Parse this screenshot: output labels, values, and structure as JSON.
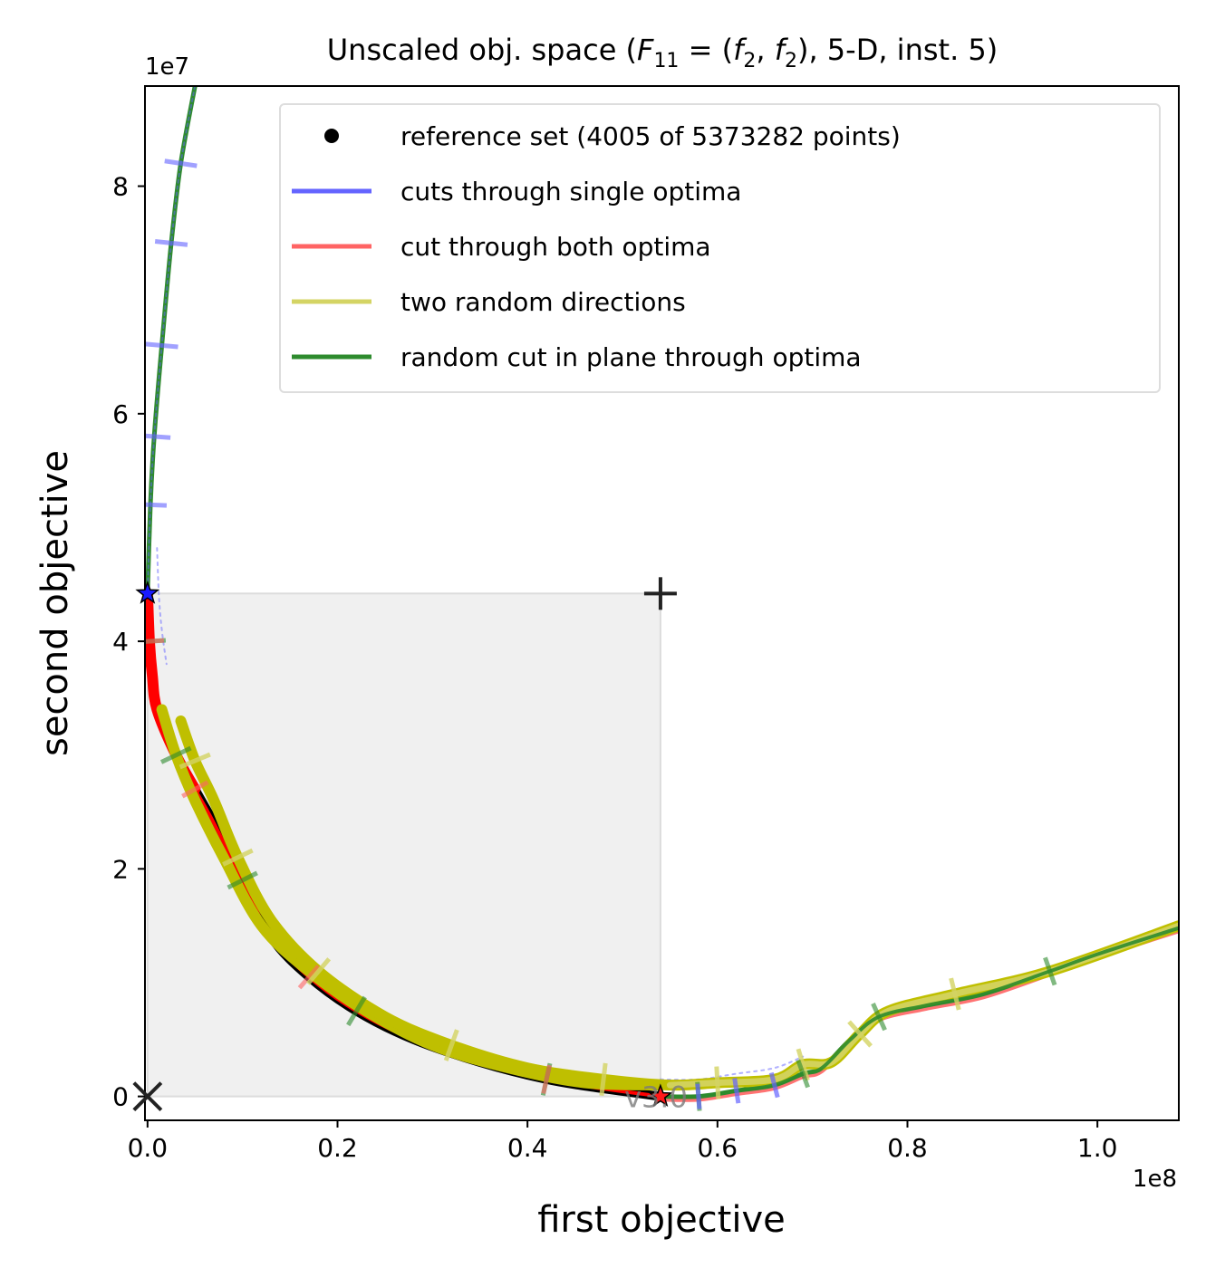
{
  "chart_data": {
    "type": "line",
    "title_prefix": "Unscaled obj. space (",
    "title_formula": {
      "F": "F",
      "F_sub": "11",
      "eq": " = (",
      "f1": "f",
      "f1_sub": "2",
      "comma": ", ",
      "f2": "f",
      "f2_sub": "2",
      "close": ")"
    },
    "title_suffix": ", 5-D, inst. 5)",
    "xlabel": "first objective",
    "ylabel": "second objective",
    "x_multiplier": "1e8",
    "y_multiplier": "1e7",
    "xlim": [
      -0.0027,
      1.0857
    ],
    "ylim": [
      -0.21,
      8.88
    ],
    "x_unit": 100000000,
    "y_unit": 10000000,
    "xticks": [
      0.0,
      0.2,
      0.4,
      0.6,
      0.8,
      1.0
    ],
    "xtick_labels": [
      "0.0",
      "0.2",
      "0.4",
      "0.6",
      "0.8",
      "1.0"
    ],
    "yticks": [
      0,
      2,
      4,
      6,
      8
    ],
    "ytick_labels": [
      "0",
      "2",
      "4",
      "6",
      "8"
    ],
    "version_label": "v3.0",
    "grid": false,
    "legend_position": "top-right",
    "legend": [
      {
        "label": "reference set (4005 of 5373282 points)",
        "marker": "dot",
        "color": "#000000"
      },
      {
        "label": "cuts through single optima",
        "marker": "line",
        "color": "#6464ff"
      },
      {
        "label": "cut through both optima",
        "marker": "line",
        "color": "#ff6464"
      },
      {
        "label": "two random directions",
        "marker": "line",
        "color": "#d4d464"
      },
      {
        "label": "random cut in plane through optima",
        "marker": "line",
        "color": "#2e8b2e"
      }
    ],
    "colors": {
      "reference": "#000000",
      "single_optima": "#6464ff",
      "both_optima": "#ff6464",
      "both_optima_dark": "#ff0000",
      "random_dirs": "#d4d464",
      "random_dirs_dark": "#bfbf00",
      "plane_cut": "#2e8b2e",
      "region": "#f0f0f0"
    },
    "markers": {
      "ideal_point": [
        0.0,
        0.0
      ],
      "nadir_point": [
        0.54,
        4.42
      ],
      "optimum_1": [
        0.0,
        4.42
      ],
      "optimum_2": [
        0.54,
        0.0
      ]
    },
    "series": [
      {
        "key": "reference",
        "points": [
          [
            0.0,
            4.42
          ],
          [
            0.002,
            4.0
          ],
          [
            0.005,
            3.7
          ],
          [
            0.01,
            3.4
          ],
          [
            0.03,
            3.0
          ],
          [
            0.05,
            2.7
          ],
          [
            0.07,
            2.4
          ],
          [
            0.1,
            1.9
          ],
          [
            0.13,
            1.4
          ],
          [
            0.17,
            1.05
          ],
          [
            0.22,
            0.75
          ],
          [
            0.28,
            0.5
          ],
          [
            0.35,
            0.3
          ],
          [
            0.42,
            0.15
          ],
          [
            0.47,
            0.08
          ],
          [
            0.54,
            0.0
          ]
        ]
      },
      {
        "key": "plane_cut_left",
        "points": [
          [
            0.0,
            4.42
          ],
          [
            0.003,
            5.2
          ],
          [
            0.007,
            5.8
          ],
          [
            0.015,
            6.6
          ],
          [
            0.025,
            7.5
          ],
          [
            0.035,
            8.2
          ],
          [
            0.05,
            8.88
          ]
        ]
      },
      {
        "key": "plane_cut_right",
        "points": [
          [
            0.54,
            0.0
          ],
          [
            0.58,
            0.0
          ],
          [
            0.62,
            0.05
          ],
          [
            0.66,
            0.1
          ],
          [
            0.69,
            0.2
          ],
          [
            0.71,
            0.25
          ],
          [
            0.74,
            0.5
          ],
          [
            0.77,
            0.7
          ],
          [
            0.82,
            0.8
          ],
          [
            0.88,
            0.9
          ],
          [
            0.95,
            1.1
          ],
          [
            1.0,
            1.25
          ],
          [
            1.0857,
            1.48
          ]
        ]
      },
      {
        "key": "random_dir_1",
        "points": [
          [
            0.015,
            3.4
          ],
          [
            0.03,
            3.0
          ],
          [
            0.05,
            2.6
          ],
          [
            0.08,
            2.1
          ],
          [
            0.12,
            1.5
          ],
          [
            0.17,
            1.1
          ],
          [
            0.23,
            0.75
          ],
          [
            0.3,
            0.45
          ],
          [
            0.38,
            0.25
          ],
          [
            0.46,
            0.12
          ],
          [
            0.54,
            0.1
          ]
        ]
      },
      {
        "key": "random_dir_2",
        "points": [
          [
            0.035,
            3.3
          ],
          [
            0.05,
            2.95
          ],
          [
            0.07,
            2.6
          ],
          [
            0.095,
            2.1
          ],
          [
            0.13,
            1.55
          ],
          [
            0.18,
            1.1
          ],
          [
            0.25,
            0.7
          ],
          [
            0.32,
            0.45
          ],
          [
            0.4,
            0.25
          ],
          [
            0.48,
            0.15
          ],
          [
            0.55,
            0.1
          ],
          [
            0.6,
            0.12
          ],
          [
            0.66,
            0.15
          ],
          [
            0.69,
            0.28
          ],
          [
            0.72,
            0.3
          ],
          [
            0.75,
            0.55
          ],
          [
            0.78,
            0.75
          ],
          [
            0.85,
            0.9
          ],
          [
            0.95,
            1.1
          ],
          [
            1.0857,
            1.5
          ]
        ]
      }
    ]
  }
}
